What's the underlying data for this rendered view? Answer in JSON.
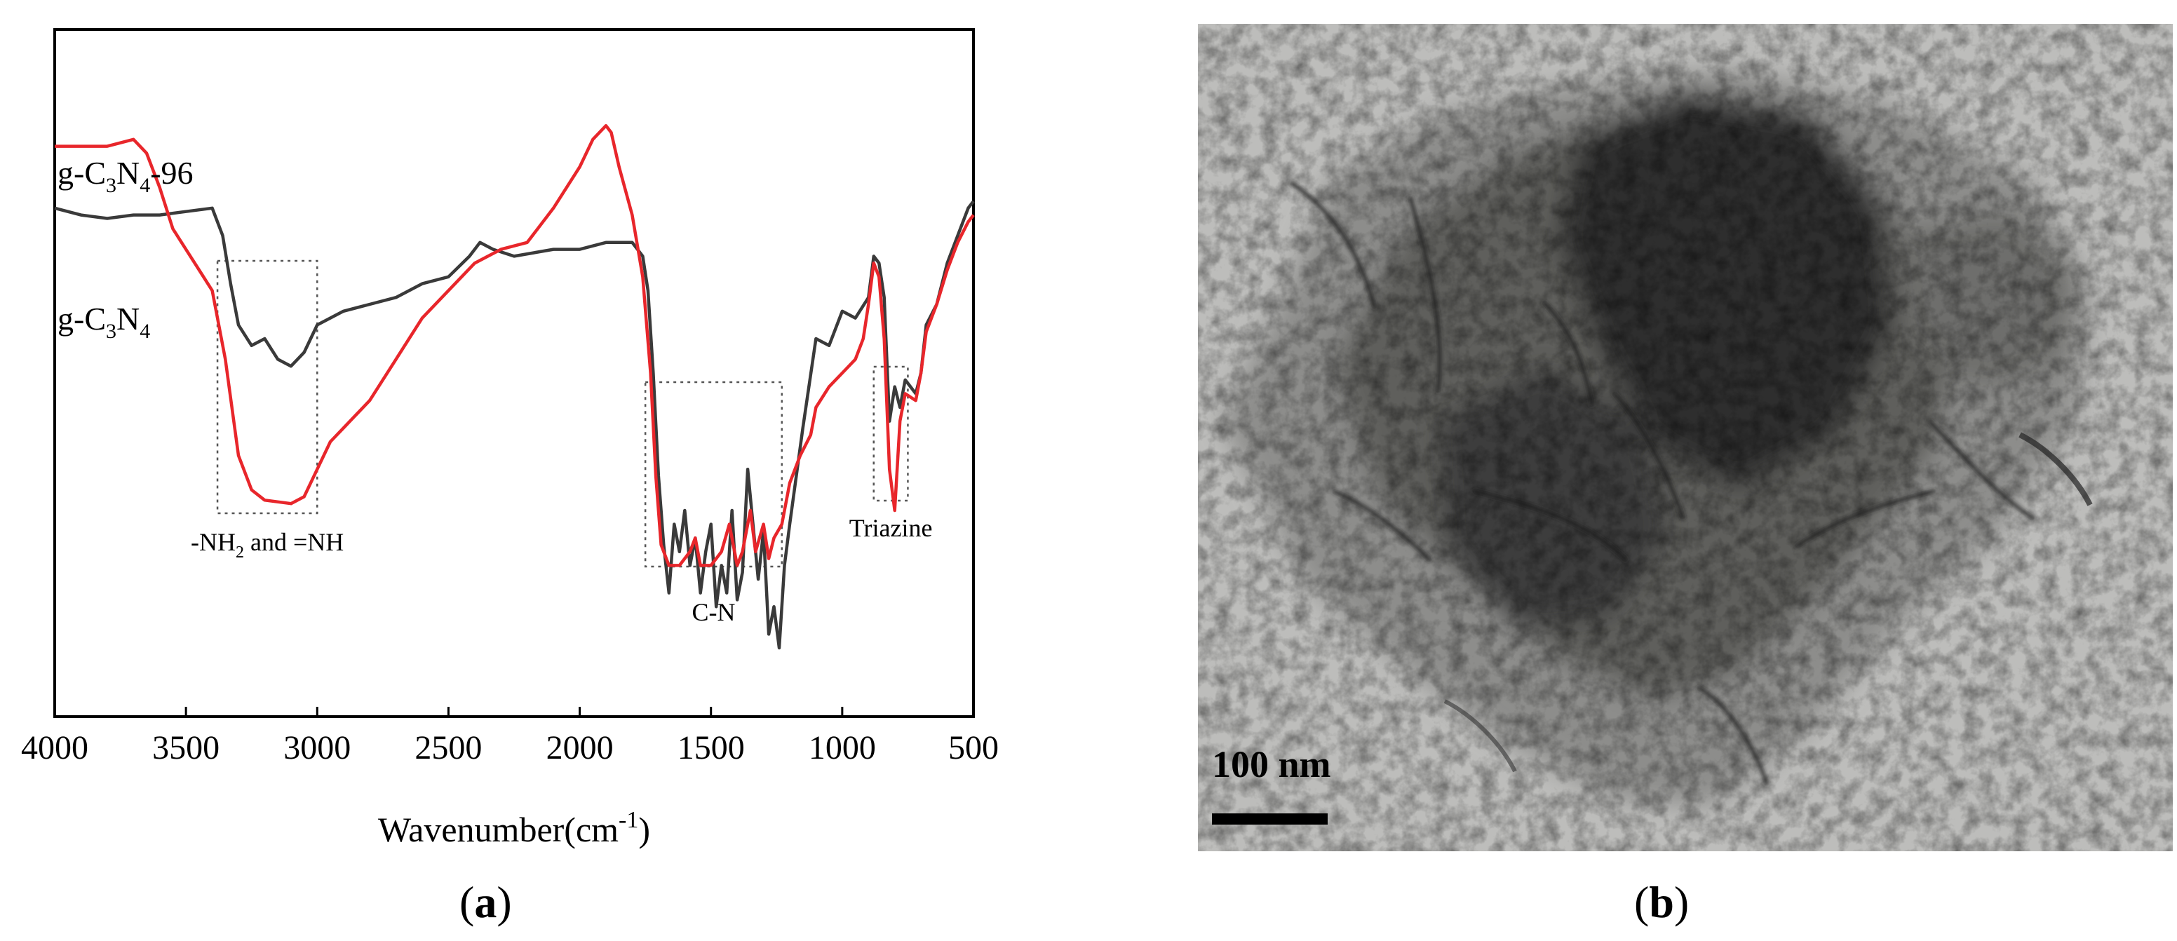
{
  "panel_labels": {
    "a": "a",
    "b": "b"
  },
  "tem": {
    "scale_bar_label": "100 nm"
  },
  "chart_data": {
    "type": "line",
    "title": "",
    "xlabel": "Wavenumber(cm",
    "xlabel_sup": "-1",
    "xlabel_close": ")",
    "ylabel": "",
    "xlim": [
      4000,
      500
    ],
    "x_reversed": true,
    "x_ticks": [
      4000,
      3500,
      3000,
      2500,
      2000,
      1500,
      1000,
      500
    ],
    "ylim": [
      0,
      100
    ],
    "grid": false,
    "legend": "inline labels",
    "series": [
      {
        "label_main": "g-C",
        "label_sub1": "3",
        "label_mid": "N",
        "label_sub2": "4",
        "label_tail": "",
        "color": "#3a3a3a",
        "points": [
          [
            4000,
            74
          ],
          [
            3900,
            73
          ],
          [
            3800,
            72.5
          ],
          [
            3700,
            73
          ],
          [
            3600,
            73
          ],
          [
            3500,
            73.5
          ],
          [
            3400,
            74
          ],
          [
            3360,
            70
          ],
          [
            3330,
            63
          ],
          [
            3300,
            57
          ],
          [
            3250,
            54
          ],
          [
            3200,
            55
          ],
          [
            3150,
            52
          ],
          [
            3100,
            51
          ],
          [
            3050,
            53
          ],
          [
            3000,
            57
          ],
          [
            2900,
            59
          ],
          [
            2800,
            60
          ],
          [
            2700,
            61
          ],
          [
            2600,
            63
          ],
          [
            2500,
            64
          ],
          [
            2420,
            67
          ],
          [
            2380,
            69
          ],
          [
            2330,
            68
          ],
          [
            2250,
            67
          ],
          [
            2100,
            68
          ],
          [
            2000,
            68
          ],
          [
            1900,
            69
          ],
          [
            1800,
            69
          ],
          [
            1760,
            67
          ],
          [
            1740,
            62
          ],
          [
            1720,
            50
          ],
          [
            1700,
            35
          ],
          [
            1680,
            25
          ],
          [
            1660,
            18
          ],
          [
            1640,
            28
          ],
          [
            1620,
            24
          ],
          [
            1600,
            30
          ],
          [
            1580,
            22
          ],
          [
            1560,
            26
          ],
          [
            1540,
            18
          ],
          [
            1520,
            24
          ],
          [
            1500,
            28
          ],
          [
            1480,
            16
          ],
          [
            1460,
            22
          ],
          [
            1440,
            18
          ],
          [
            1420,
            30
          ],
          [
            1400,
            17
          ],
          [
            1380,
            21
          ],
          [
            1360,
            36
          ],
          [
            1340,
            28
          ],
          [
            1320,
            20
          ],
          [
            1300,
            27
          ],
          [
            1280,
            12
          ],
          [
            1260,
            16
          ],
          [
            1240,
            10
          ],
          [
            1220,
            22
          ],
          [
            1200,
            28
          ],
          [
            1150,
            42
          ],
          [
            1100,
            55
          ],
          [
            1050,
            54
          ],
          [
            1000,
            59
          ],
          [
            950,
            58
          ],
          [
            900,
            61
          ],
          [
            880,
            67
          ],
          [
            860,
            66
          ],
          [
            840,
            61
          ],
          [
            820,
            43
          ],
          [
            800,
            48
          ],
          [
            780,
            45
          ],
          [
            760,
            49
          ],
          [
            720,
            47
          ],
          [
            700,
            50
          ],
          [
            680,
            57
          ],
          [
            640,
            60
          ],
          [
            600,
            66
          ],
          [
            560,
            70
          ],
          [
            520,
            74
          ],
          [
            500,
            75
          ]
        ]
      },
      {
        "label_main": "g-C",
        "label_sub1": "3",
        "label_mid": "N",
        "label_sub2": "4",
        "label_tail": "-96",
        "color": "#e8262b",
        "points": [
          [
            4000,
            83
          ],
          [
            3800,
            83
          ],
          [
            3700,
            84
          ],
          [
            3650,
            82
          ],
          [
            3600,
            77
          ],
          [
            3550,
            71
          ],
          [
            3500,
            68
          ],
          [
            3450,
            65
          ],
          [
            3400,
            62
          ],
          [
            3350,
            52
          ],
          [
            3300,
            38
          ],
          [
            3250,
            33
          ],
          [
            3200,
            31.5
          ],
          [
            3100,
            31
          ],
          [
            3050,
            32
          ],
          [
            3000,
            36
          ],
          [
            2950,
            40
          ],
          [
            2900,
            42
          ],
          [
            2800,
            46
          ],
          [
            2700,
            52
          ],
          [
            2600,
            58
          ],
          [
            2500,
            62
          ],
          [
            2400,
            66
          ],
          [
            2300,
            68
          ],
          [
            2200,
            69
          ],
          [
            2100,
            74
          ],
          [
            2000,
            80
          ],
          [
            1950,
            84
          ],
          [
            1900,
            86
          ],
          [
            1880,
            85
          ],
          [
            1850,
            80
          ],
          [
            1800,
            73
          ],
          [
            1760,
            64
          ],
          [
            1730,
            50
          ],
          [
            1710,
            35
          ],
          [
            1690,
            25
          ],
          [
            1660,
            22
          ],
          [
            1620,
            22
          ],
          [
            1580,
            24
          ],
          [
            1560,
            26
          ],
          [
            1540,
            22
          ],
          [
            1500,
            22
          ],
          [
            1460,
            24
          ],
          [
            1430,
            28
          ],
          [
            1400,
            22
          ],
          [
            1380,
            24
          ],
          [
            1350,
            30
          ],
          [
            1330,
            24
          ],
          [
            1300,
            28
          ],
          [
            1280,
            23
          ],
          [
            1260,
            26
          ],
          [
            1230,
            28
          ],
          [
            1200,
            34
          ],
          [
            1160,
            38
          ],
          [
            1120,
            41
          ],
          [
            1100,
            45
          ],
          [
            1050,
            48
          ],
          [
            1000,
            50
          ],
          [
            950,
            52
          ],
          [
            920,
            55
          ],
          [
            900,
            60
          ],
          [
            880,
            66
          ],
          [
            860,
            64
          ],
          [
            840,
            55
          ],
          [
            820,
            36
          ],
          [
            800,
            30
          ],
          [
            780,
            43
          ],
          [
            760,
            47
          ],
          [
            720,
            46
          ],
          [
            700,
            50
          ],
          [
            680,
            56
          ],
          [
            640,
            60
          ],
          [
            600,
            65
          ],
          [
            560,
            69
          ],
          [
            520,
            72
          ],
          [
            500,
            73
          ]
        ]
      }
    ],
    "annotations": [
      {
        "text_main": "-NH",
        "text_sub": "2",
        "text_tail": " and =NH",
        "x_range": [
          3380,
          3000
        ]
      },
      {
        "text_main": "C-N",
        "text_sub": "",
        "text_tail": "",
        "x_range": [
          1750,
          1230
        ]
      },
      {
        "text_main": "Triazine",
        "text_sub": "",
        "text_tail": "",
        "x_range": [
          880,
          750
        ]
      }
    ]
  }
}
